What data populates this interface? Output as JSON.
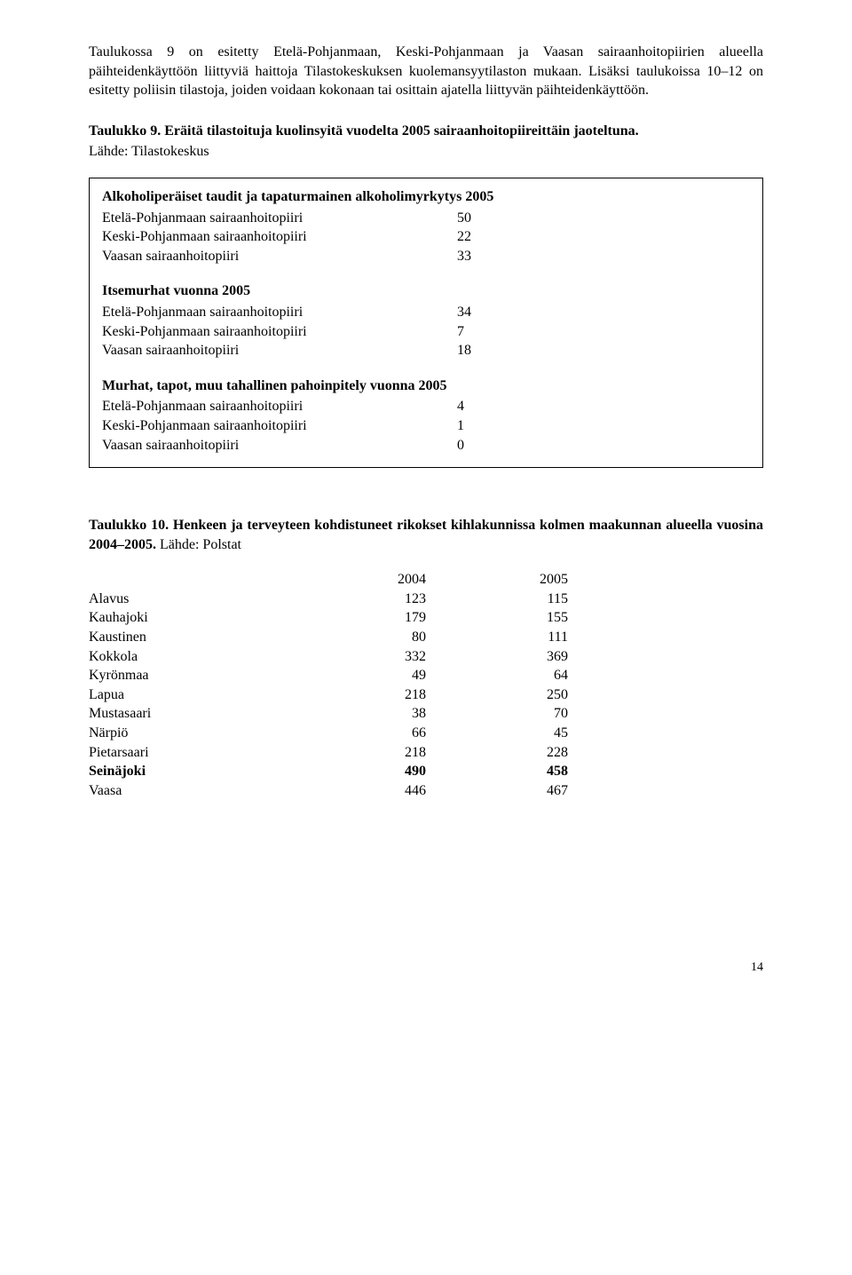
{
  "intro_para": "Taulukossa 9 on esitetty Etelä-Pohjanmaan, Keski-Pohjanmaan ja Vaasan sairaanhoitopiirien alueella päihteidenkäyttöön liittyviä haittoja Tilastokeskuksen kuolemansyytilaston mukaan. Lisäksi taulukoissa 10–12 on esitetty poliisin tilastoja, joiden voidaan kokonaan tai osittain ajatella liittyvän päihteidenkäyttöön.",
  "table9": {
    "title_bold": "Taulukko 9. Eräitä tilastoituja kuolinsyitä vuodelta 2005 sairaanhoitopiireittäin jaoteltuna.",
    "source": "Lähde: Tilastokeskus",
    "sections": [
      {
        "title": "Alkoholiperäiset taudit ja tapaturmainen alkoholimyrkytys 2005",
        "rows": [
          {
            "label": "Etelä-Pohjanmaan sairaanhoitopiiri",
            "value": "50"
          },
          {
            "label": "Keski-Pohjanmaan sairaanhoitopiiri",
            "value": "22"
          },
          {
            "label": "Vaasan sairaanhoitopiiri",
            "value": "33"
          }
        ]
      },
      {
        "title": "Itsemurhat vuonna 2005",
        "rows": [
          {
            "label": "Etelä-Pohjanmaan sairaanhoitopiiri",
            "value": "34"
          },
          {
            "label": "Keski-Pohjanmaan sairaanhoitopiiri",
            "value": "7"
          },
          {
            "label": "Vaasan sairaanhoitopiiri",
            "value": "18"
          }
        ]
      },
      {
        "title": "Murhat, tapot, muu tahallinen pahoinpitely vuonna 2005",
        "rows": [
          {
            "label": "Etelä-Pohjanmaan sairaanhoitopiiri",
            "value": "4"
          },
          {
            "label": "Keski-Pohjanmaan sairaanhoitopiiri",
            "value": "1"
          },
          {
            "label": "Vaasan sairaanhoitopiiri",
            "value": "0"
          }
        ]
      }
    ]
  },
  "table10": {
    "title_bold": "Taulukko 10. Henkeen ja terveyteen kohdistuneet rikokset kihlakunnissa kolmen maakunnan alueella vuosina 2004–2005.",
    "source": " Lähde: Polstat",
    "columns": [
      "",
      "2004",
      "2005"
    ],
    "rows": [
      {
        "label": "Alavus",
        "v2004": "123",
        "v2005": "115",
        "bold": false
      },
      {
        "label": "Kauhajoki",
        "v2004": "179",
        "v2005": "155",
        "bold": false
      },
      {
        "label": "Kaustinen",
        "v2004": "80",
        "v2005": "111",
        "bold": false
      },
      {
        "label": "Kokkola",
        "v2004": "332",
        "v2005": "369",
        "bold": false
      },
      {
        "label": "Kyrönmaa",
        "v2004": "49",
        "v2005": "64",
        "bold": false
      },
      {
        "label": "Lapua",
        "v2004": "218",
        "v2005": "250",
        "bold": false
      },
      {
        "label": "Mustasaari",
        "v2004": "38",
        "v2005": "70",
        "bold": false
      },
      {
        "label": "Närpiö",
        "v2004": "66",
        "v2005": "45",
        "bold": false
      },
      {
        "label": "Pietarsaari",
        "v2004": "218",
        "v2005": "228",
        "bold": false
      },
      {
        "label": "Seinäjoki",
        "v2004": "490",
        "v2005": "458",
        "bold": true
      },
      {
        "label": "Vaasa",
        "v2004": "446",
        "v2005": "467",
        "bold": false
      }
    ]
  },
  "page_number": "14"
}
